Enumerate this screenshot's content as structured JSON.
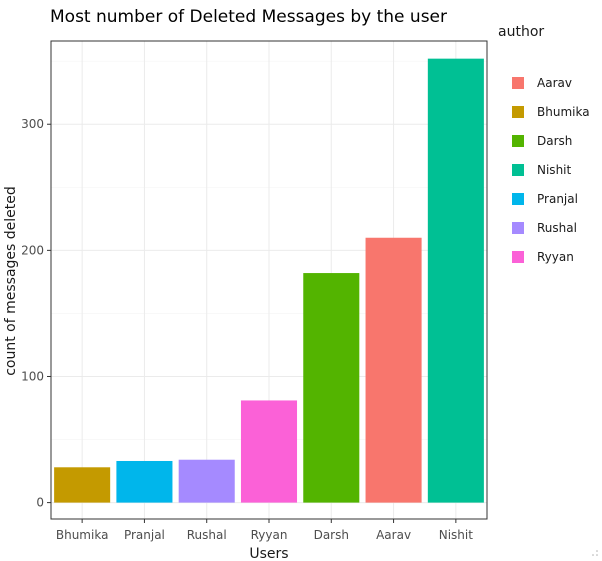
{
  "chart_data": {
    "type": "bar",
    "title": "Most number of Deleted Messages by the user",
    "xlabel": "Users",
    "ylabel": "count of messages deleted",
    "categories": [
      "Bhumika",
      "Pranjal",
      "Rushal",
      "Ryyan",
      "Darsh",
      "Aarav",
      "Nishit"
    ],
    "values": [
      28,
      33,
      34,
      81,
      182,
      210,
      352
    ],
    "bar_colors": [
      "#C49A00",
      "#00B6EB",
      "#A58AFF",
      "#FB61D7",
      "#53B400",
      "#F8766D",
      "#00C094"
    ],
    "yticks": [
      0,
      100,
      200,
      300
    ],
    "ylim": [
      -13,
      366
    ],
    "grid": true,
    "legend": {
      "title": "author",
      "position": "right",
      "entries": [
        {
          "label": "Aarav",
          "color": "#F8766D"
        },
        {
          "label": "Bhumika",
          "color": "#C49A00"
        },
        {
          "label": "Darsh",
          "color": "#53B400"
        },
        {
          "label": "Nishit",
          "color": "#00C094"
        },
        {
          "label": "Pranjal",
          "color": "#00B6EB"
        },
        {
          "label": "Rushal",
          "color": "#A58AFF"
        },
        {
          "label": "Ryyan",
          "color": "#FB61D7"
        }
      ]
    }
  }
}
